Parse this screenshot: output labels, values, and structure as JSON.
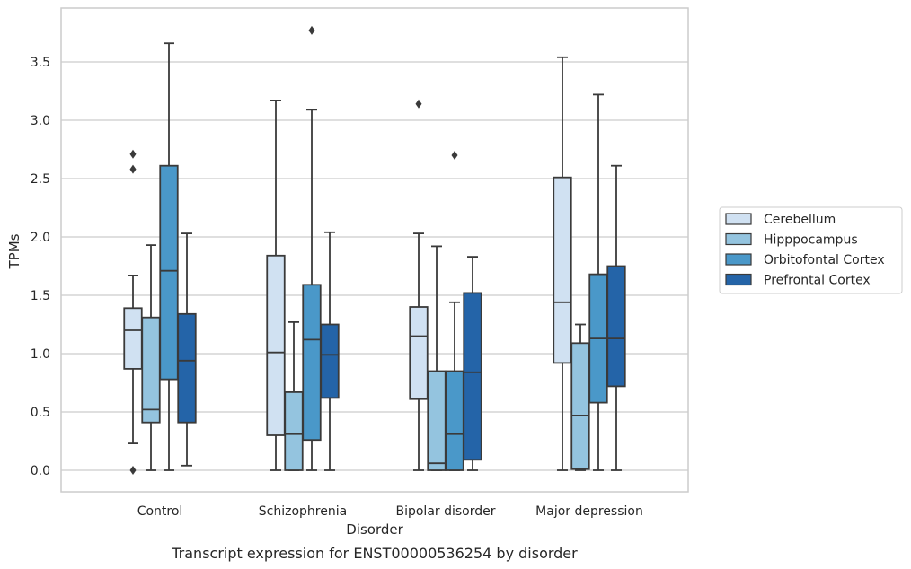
{
  "chart_data": {
    "type": "boxplot",
    "caption": "Transcript expression for ENST00000536254 by disorder",
    "xlabel": "Disorder",
    "ylabel": "TPMs",
    "ylim": [
      -0.18,
      3.95
    ],
    "yticks": [
      0.0,
      0.5,
      1.0,
      1.5,
      2.0,
      2.5,
      3.0,
      3.5
    ],
    "ytick_labels": [
      "0.0",
      "0.5",
      "1.0",
      "1.5",
      "2.0",
      "2.5",
      "3.0",
      "3.5"
    ],
    "grid": "horizontal",
    "legend_position": "right",
    "categories": [
      "Control",
      "Schizophrenia",
      "Bipolar disorder",
      "Major depression"
    ],
    "series": [
      {
        "name": "Cerebellum",
        "color": "#d0e1f2",
        "boxes": [
          {
            "whisker_low": 0.23,
            "q1": 0.87,
            "median": 1.2,
            "q3": 1.39,
            "whisker_high": 1.67,
            "outliers": [
              2.71,
              2.58,
              0.0
            ]
          },
          {
            "whisker_low": 0.0,
            "q1": 0.3,
            "median": 1.01,
            "q3": 1.84,
            "whisker_high": 3.17,
            "outliers": []
          },
          {
            "whisker_low": 0.0,
            "q1": 0.61,
            "median": 1.15,
            "q3": 1.4,
            "whisker_high": 2.03,
            "outliers": [
              3.14
            ]
          },
          {
            "whisker_low": 0.0,
            "q1": 0.92,
            "median": 1.44,
            "q3": 2.51,
            "whisker_high": 3.54,
            "outliers": []
          }
        ]
      },
      {
        "name": "Hipppocampus",
        "color": "#94c4df",
        "boxes": [
          {
            "whisker_low": 0.0,
            "q1": 0.41,
            "median": 0.52,
            "q3": 1.31,
            "whisker_high": 1.93,
            "outliers": []
          },
          {
            "whisker_low": 0.0,
            "q1": 0.0,
            "median": 0.31,
            "q3": 0.67,
            "whisker_high": 1.27,
            "outliers": []
          },
          {
            "whisker_low": 0.0,
            "q1": 0.0,
            "median": 0.06,
            "q3": 0.85,
            "whisker_high": 1.92,
            "outliers": []
          },
          {
            "whisker_low": 0.0,
            "q1": 0.01,
            "median": 0.47,
            "q3": 1.09,
            "whisker_high": 1.25,
            "outliers": []
          }
        ]
      },
      {
        "name": "Orbitofontal Cortex",
        "color": "#4a98c9",
        "boxes": [
          {
            "whisker_low": 0.0,
            "q1": 0.78,
            "median": 1.71,
            "q3": 2.61,
            "whisker_high": 3.66,
            "outliers": []
          },
          {
            "whisker_low": 0.0,
            "q1": 0.26,
            "median": 1.12,
            "q3": 1.59,
            "whisker_high": 3.09,
            "outliers": [
              3.77
            ]
          },
          {
            "whisker_low": 0.0,
            "q1": 0.0,
            "median": 0.31,
            "q3": 0.85,
            "whisker_high": 1.44,
            "outliers": [
              2.7
            ]
          },
          {
            "whisker_low": 0.0,
            "q1": 0.58,
            "median": 1.13,
            "q3": 1.68,
            "whisker_high": 3.22,
            "outliers": []
          }
        ]
      },
      {
        "name": "Prefrontal Cortex",
        "color": "#2464a8",
        "boxes": [
          {
            "whisker_low": 0.04,
            "q1": 0.41,
            "median": 0.94,
            "q3": 1.34,
            "whisker_high": 2.03,
            "outliers": []
          },
          {
            "whisker_low": 0.0,
            "q1": 0.62,
            "median": 0.99,
            "q3": 1.25,
            "whisker_high": 2.04,
            "outliers": []
          },
          {
            "whisker_low": 0.0,
            "q1": 0.09,
            "median": 0.84,
            "q3": 1.52,
            "whisker_high": 1.83,
            "outliers": []
          },
          {
            "whisker_low": 0.0,
            "q1": 0.72,
            "median": 1.13,
            "q3": 1.75,
            "whisker_high": 2.61,
            "outliers": []
          }
        ]
      }
    ]
  }
}
